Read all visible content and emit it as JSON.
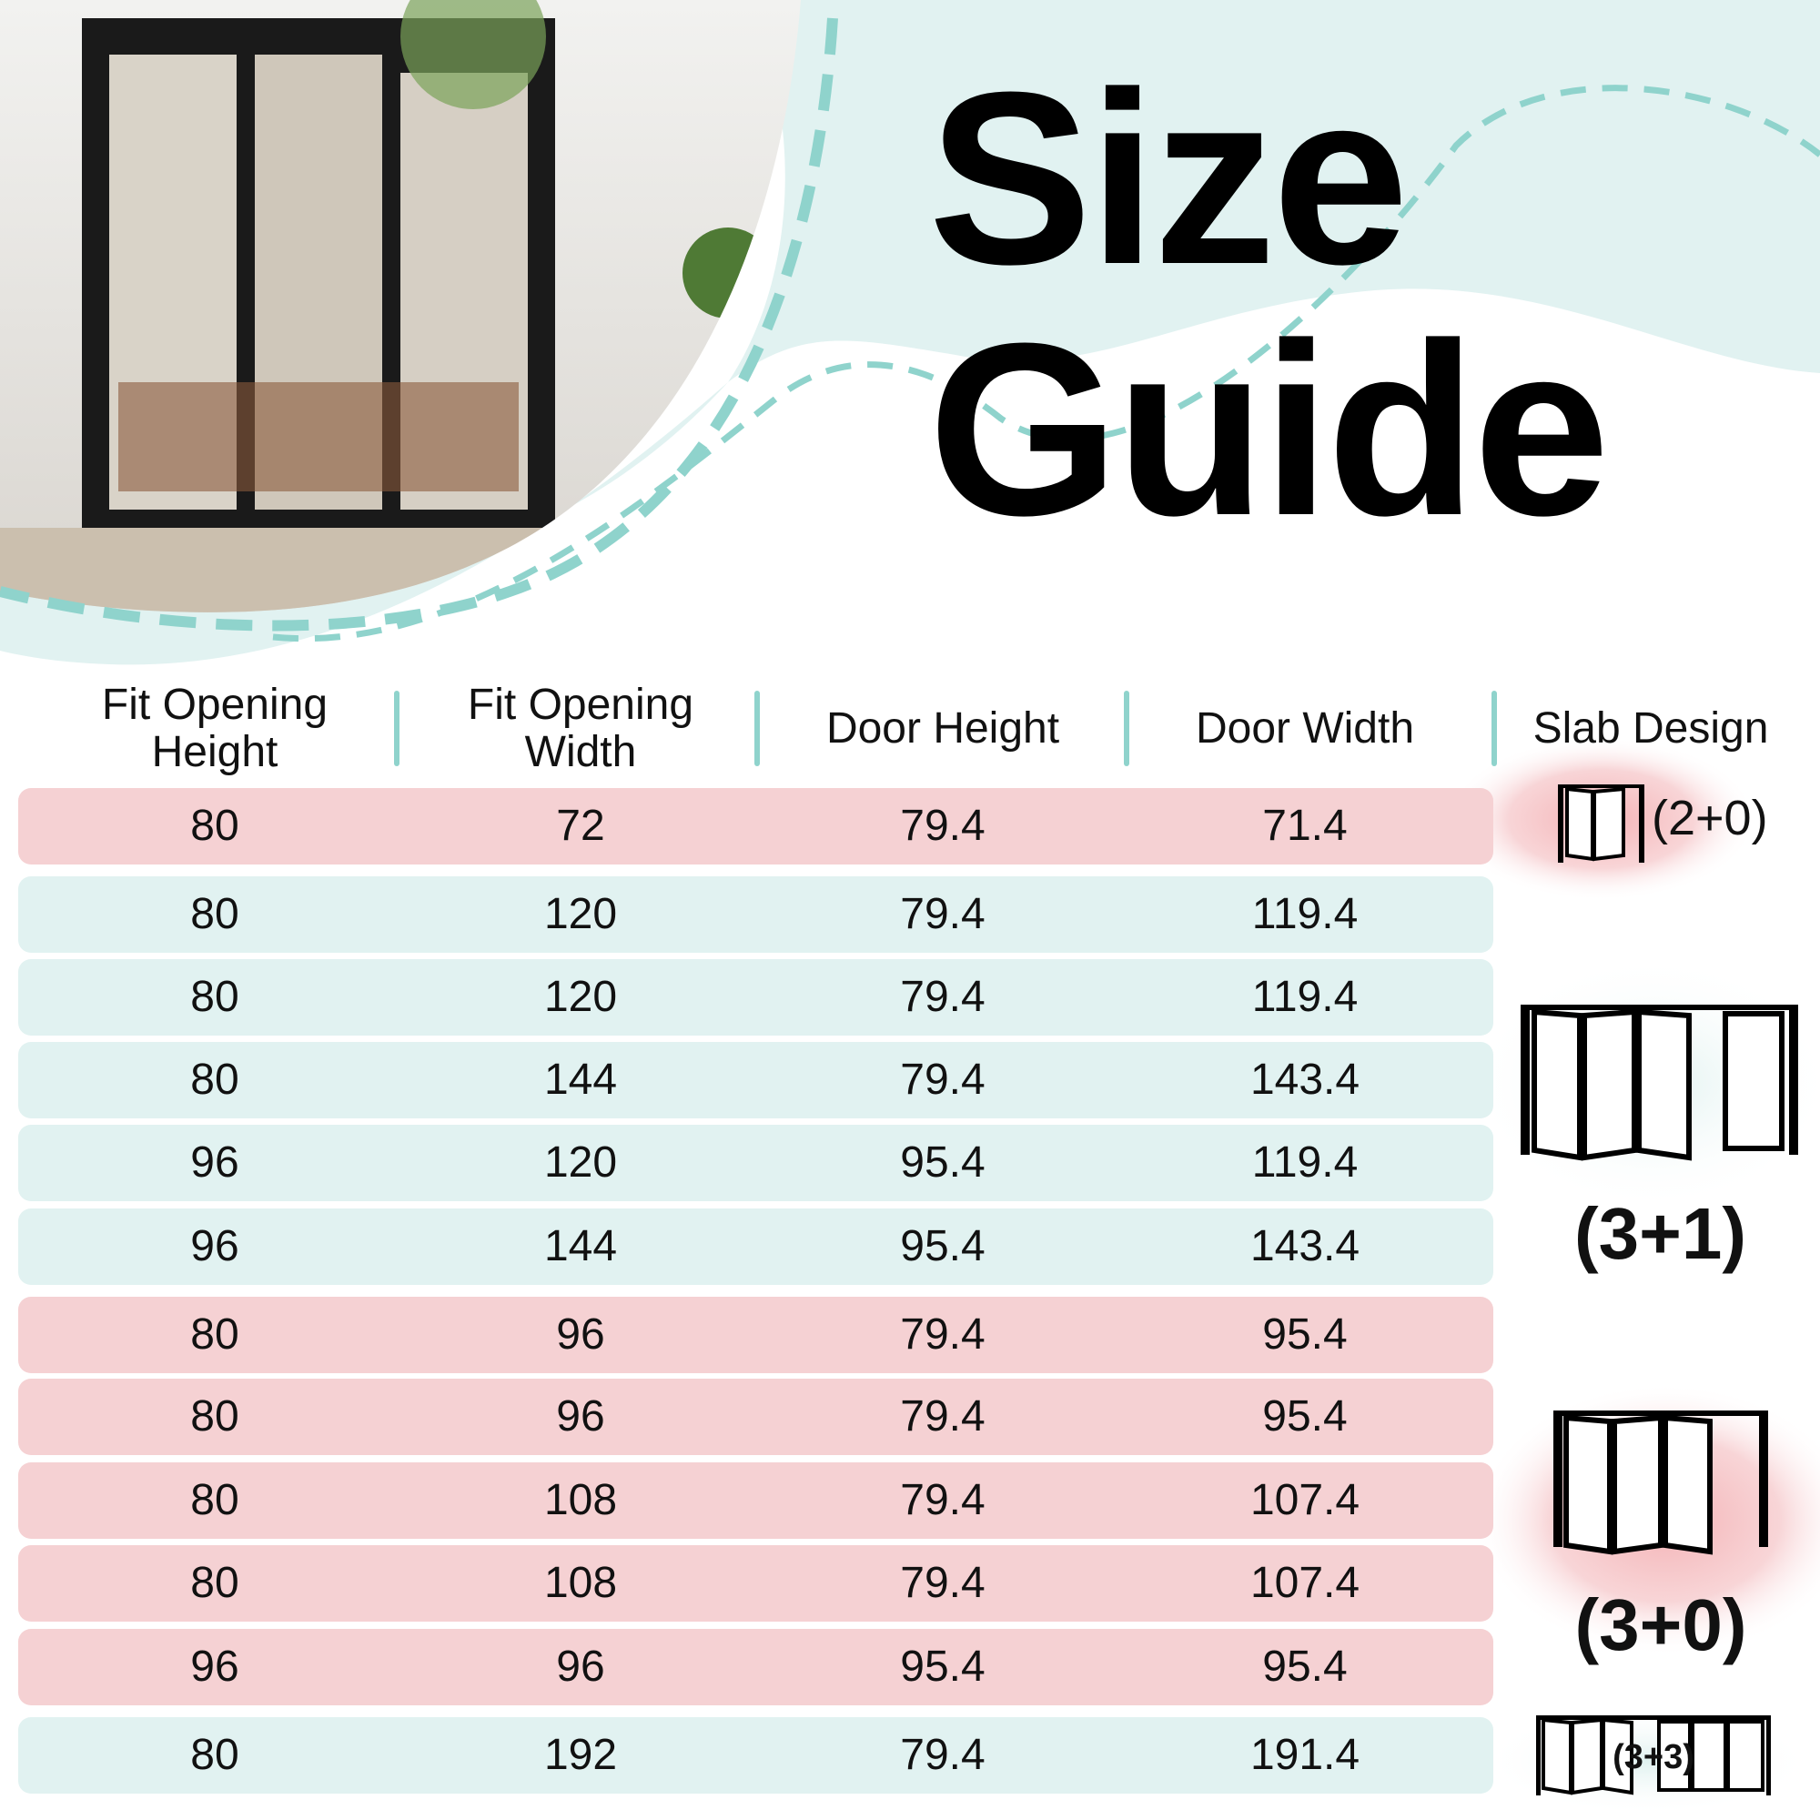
{
  "title": {
    "line1": "Size",
    "line2": "Guide"
  },
  "colors": {
    "pink_row": "#f5d1d3",
    "teal_row": "#e1f2f1",
    "accent_teal": "#8fd3cc",
    "background_blob": "#e1f2f1"
  },
  "photo": {
    "description_icon": "patio-bifold-door-photo"
  },
  "table": {
    "headers": [
      "Fit Opening\nHeight",
      "Fit Opening\nWidth",
      "Door Height",
      "Door Width",
      "Slab Design"
    ],
    "rows": [
      {
        "cells": [
          "80",
          "72",
          "79.4",
          "71.4"
        ],
        "color": "pink"
      },
      {
        "cells": [
          "80",
          "120",
          "79.4",
          "119.4"
        ],
        "color": "teal"
      },
      {
        "cells": [
          "80",
          "120",
          "79.4",
          "119.4"
        ],
        "color": "teal"
      },
      {
        "cells": [
          "80",
          "144",
          "79.4",
          "143.4"
        ],
        "color": "teal"
      },
      {
        "cells": [
          "96",
          "120",
          "95.4",
          "119.4"
        ],
        "color": "teal"
      },
      {
        "cells": [
          "96",
          "144",
          "95.4",
          "143.4"
        ],
        "color": "teal"
      },
      {
        "cells": [
          "80",
          "96",
          "79.4",
          "95.4"
        ],
        "color": "pink"
      },
      {
        "cells": [
          "80",
          "96",
          "79.4",
          "95.4"
        ],
        "color": "pink"
      },
      {
        "cells": [
          "80",
          "108",
          "79.4",
          "107.4"
        ],
        "color": "pink"
      },
      {
        "cells": [
          "80",
          "108",
          "79.4",
          "107.4"
        ],
        "color": "pink"
      },
      {
        "cells": [
          "96",
          "96",
          "95.4",
          "95.4"
        ],
        "color": "pink"
      },
      {
        "cells": [
          "80",
          "192",
          "79.4",
          "191.4"
        ],
        "color": "teal"
      }
    ]
  },
  "slab_designs": [
    {
      "label": "(2+0)",
      "icon": "bifold-2-panel-icon"
    },
    {
      "label": "(3+1)",
      "icon": "bifold-3-plus-1-panel-icon"
    },
    {
      "label": "(3+0)",
      "icon": "bifold-3-panel-icon"
    },
    {
      "label": "(3+3)",
      "icon": "bifold-6-panel-icon"
    }
  ]
}
